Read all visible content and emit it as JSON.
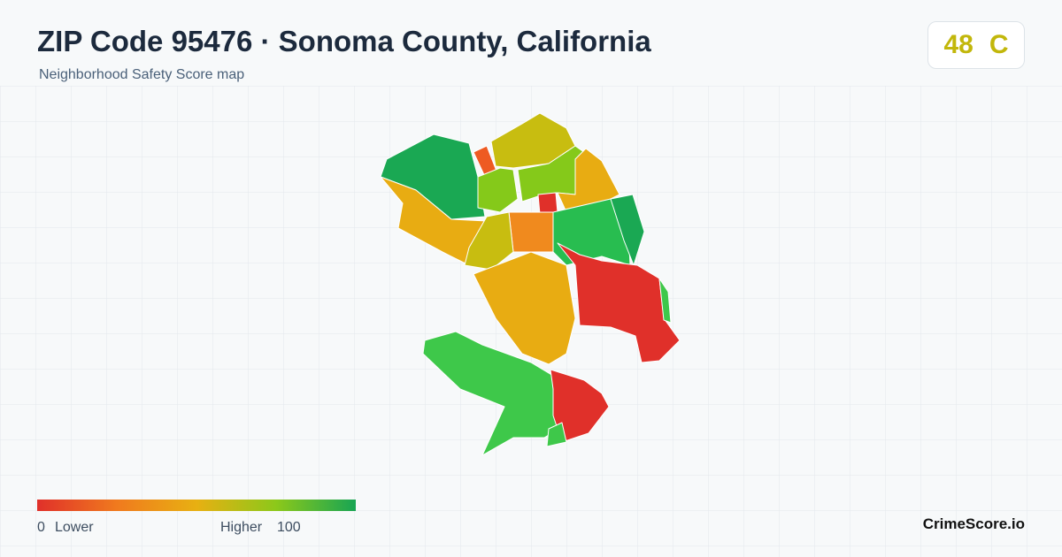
{
  "header": {
    "title": "ZIP Code 95476 · Sonoma County, California",
    "subtitle": "Neighborhood Safety Score map"
  },
  "score": {
    "value": 48,
    "grade": "C"
  },
  "legend": {
    "min": 0,
    "min_label": "Lower",
    "max_label": "Higher",
    "max": 100
  },
  "brand": "CrimeScore.io"
}
